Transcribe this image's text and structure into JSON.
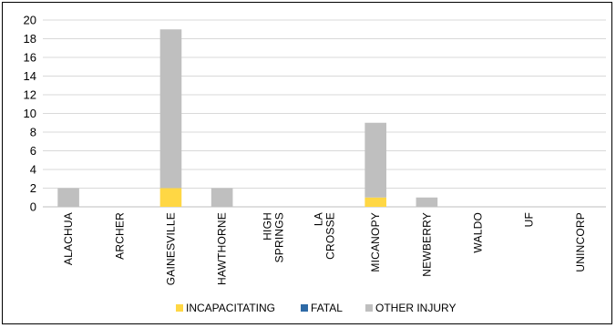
{
  "chart_data": {
    "type": "bar",
    "stacked": true,
    "title": "",
    "xlabel": "",
    "ylabel": "",
    "ylim": [
      0,
      20
    ],
    "yticks": [
      0,
      2,
      4,
      6,
      8,
      10,
      12,
      14,
      16,
      18,
      20
    ],
    "grid": true,
    "legend_position": "bottom",
    "categories": [
      "ALACHUA",
      "ARCHER",
      "GAINESVILLE",
      "HAWTHORNE",
      "HIGH SPRINGS",
      "LA CROSSE",
      "MICANOPY",
      "NEWBERRY",
      "WALDO",
      "UF",
      "UNINCORP"
    ],
    "series": [
      {
        "name": "INCAPACITATING",
        "color": "#FFD744",
        "values": [
          0,
          0,
          2,
          0,
          0,
          0,
          1,
          0,
          0,
          0,
          0
        ]
      },
      {
        "name": "FATAL",
        "color": "#2E6AA6",
        "values": [
          0,
          0,
          0,
          0,
          0,
          0,
          0,
          0,
          0,
          0,
          0
        ]
      },
      {
        "name": "OTHER INJURY",
        "color": "#BFBFBF",
        "values": [
          2,
          0,
          17,
          2,
          0,
          0,
          8,
          1,
          0,
          0,
          0
        ]
      }
    ]
  }
}
